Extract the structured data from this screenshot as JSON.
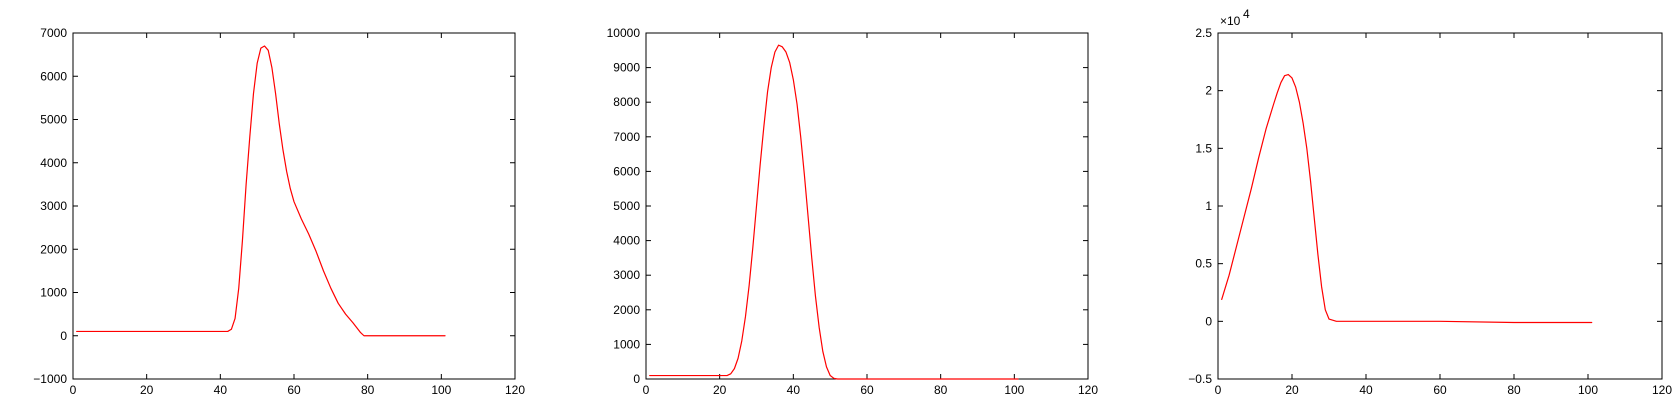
{
  "chart_data": [
    {
      "type": "line",
      "title": "",
      "xlabel": "",
      "ylabel": "",
      "xlim": [
        0,
        120
      ],
      "ylim": [
        -1000,
        7000
      ],
      "xticks": [
        0,
        20,
        40,
        60,
        80,
        100,
        120
      ],
      "yticks": [
        -1000,
        0,
        1000,
        2000,
        3000,
        4000,
        5000,
        6000,
        7000
      ],
      "xtick_labels": [
        "0",
        "20",
        "40",
        "60",
        "80",
        "100",
        "120"
      ],
      "ytick_labels": [
        "−1000",
        "0",
        "1000",
        "2000",
        "3000",
        "4000",
        "5000",
        "6000",
        "7000"
      ],
      "exponent_label": "",
      "grid": false,
      "color": "#ff0000",
      "series": [
        {
          "x": [
            1,
            10,
            20,
            30,
            40,
            42,
            43,
            44,
            45,
            46,
            47,
            48,
            49,
            50,
            51,
            52,
            53,
            54,
            55,
            56,
            57,
            58,
            59,
            60,
            62,
            64,
            66,
            68,
            70,
            72,
            74,
            76,
            78,
            79,
            80,
            90,
            101
          ],
          "y": [
            100,
            100,
            100,
            100,
            100,
            100,
            150,
            400,
            1100,
            2200,
            3500,
            4600,
            5600,
            6300,
            6650,
            6700,
            6600,
            6200,
            5600,
            4900,
            4300,
            3800,
            3400,
            3100,
            2700,
            2350,
            1950,
            1500,
            1100,
            750,
            500,
            300,
            80,
            0,
            0,
            0,
            0
          ]
        }
      ]
    },
    {
      "type": "line",
      "title": "",
      "xlabel": "",
      "ylabel": "",
      "xlim": [
        0,
        120
      ],
      "ylim": [
        0,
        10000
      ],
      "xticks": [
        0,
        20,
        40,
        60,
        80,
        100,
        120
      ],
      "yticks": [
        0,
        1000,
        2000,
        3000,
        4000,
        5000,
        6000,
        7000,
        8000,
        9000,
        10000
      ],
      "xtick_labels": [
        "0",
        "20",
        "40",
        "60",
        "80",
        "100",
        "120"
      ],
      "ytick_labels": [
        "0",
        "1000",
        "2000",
        "3000",
        "4000",
        "5000",
        "6000",
        "7000",
        "8000",
        "9000",
        "10000"
      ],
      "exponent_label": "",
      "grid": false,
      "color": "#ff0000",
      "series": [
        {
          "x": [
            1,
            10,
            20,
            22,
            23,
            24,
            25,
            26,
            27,
            28,
            29,
            30,
            31,
            32,
            33,
            34,
            35,
            36,
            37,
            38,
            39,
            40,
            41,
            42,
            43,
            44,
            45,
            46,
            47,
            48,
            49,
            50,
            51,
            52,
            53,
            60,
            80,
            101
          ],
          "y": [
            100,
            100,
            100,
            100,
            150,
            300,
            600,
            1100,
            1800,
            2700,
            3800,
            5000,
            6200,
            7300,
            8300,
            9000,
            9450,
            9650,
            9600,
            9450,
            9150,
            8650,
            7950,
            7000,
            5900,
            4700,
            3500,
            2400,
            1500,
            800,
            350,
            100,
            20,
            0,
            0,
            0,
            0,
            0
          ]
        }
      ]
    },
    {
      "type": "line",
      "title": "",
      "xlabel": "",
      "ylabel": "",
      "xlim": [
        0,
        120
      ],
      "ylim": [
        -0.5,
        2.5
      ],
      "xticks": [
        0,
        20,
        40,
        60,
        80,
        100,
        120
      ],
      "yticks": [
        -0.5,
        0,
        0.5,
        1,
        1.5,
        2,
        2.5
      ],
      "xtick_labels": [
        "0",
        "20",
        "40",
        "60",
        "80",
        "100",
        "120"
      ],
      "ytick_labels": [
        "−0.5",
        "0",
        "0.5",
        "1",
        "1.5",
        "2",
        "2.5"
      ],
      "exponent_label": "×10",
      "exponent_power": "4",
      "grid": false,
      "color": "#ff0000",
      "series": [
        {
          "x": [
            1,
            3,
            5,
            7,
            9,
            11,
            13,
            15,
            16,
            17,
            18,
            19,
            20,
            21,
            22,
            23,
            24,
            25,
            26,
            27,
            28,
            29,
            30,
            31,
            32,
            40,
            60,
            80,
            101
          ],
          "y": [
            0.19,
            0.4,
            0.65,
            0.9,
            1.15,
            1.42,
            1.67,
            1.88,
            1.98,
            2.07,
            2.13,
            2.14,
            2.11,
            2.03,
            1.9,
            1.72,
            1.5,
            1.22,
            0.9,
            0.58,
            0.3,
            0.1,
            0.02,
            0.01,
            0.0,
            0.0,
            0.0,
            -0.01,
            -0.01
          ]
        }
      ]
    }
  ]
}
